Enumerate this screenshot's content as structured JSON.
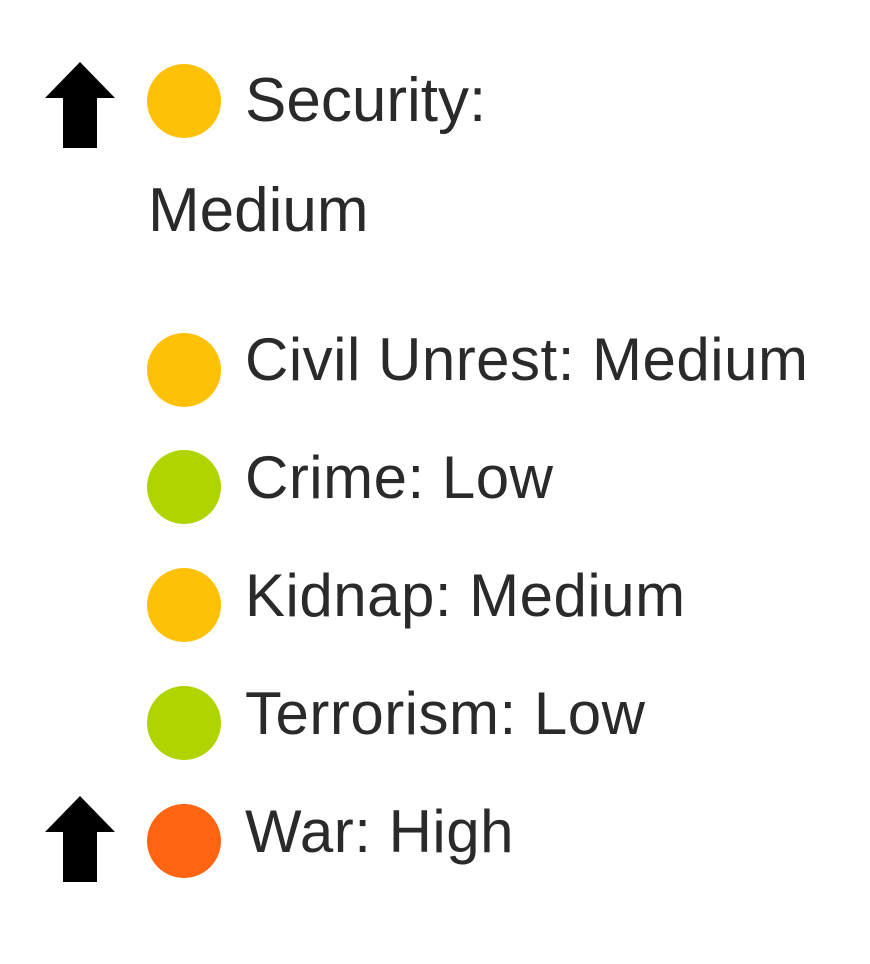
{
  "header": {
    "label": "Security:",
    "level": "Medium",
    "trend": "up-arrow-icon",
    "color": "#FFC107"
  },
  "items": [
    {
      "label": "Civil Unrest: Medium",
      "color": "#FFC107",
      "trend": null
    },
    {
      "label": "Crime: Low",
      "color": "#AED500",
      "trend": null
    },
    {
      "label": "Kidnap: Medium",
      "color": "#FFC107",
      "trend": null
    },
    {
      "label": "Terrorism: Low",
      "color": "#AED500",
      "trend": null
    },
    {
      "label": "War: High",
      "color": "#FF6410",
      "trend": "up-arrow-icon"
    }
  ]
}
